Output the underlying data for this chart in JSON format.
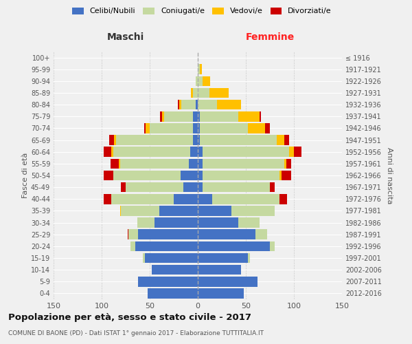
{
  "age_groups": [
    "0-4",
    "5-9",
    "10-14",
    "15-19",
    "20-24",
    "25-29",
    "30-34",
    "35-39",
    "40-44",
    "45-49",
    "50-54",
    "55-59",
    "60-64",
    "65-69",
    "70-74",
    "75-79",
    "80-84",
    "85-89",
    "90-94",
    "95-99",
    "100+"
  ],
  "birth_years": [
    "2012-2016",
    "2007-2011",
    "2002-2006",
    "1997-2001",
    "1992-1996",
    "1987-1991",
    "1982-1986",
    "1977-1981",
    "1972-1976",
    "1967-1971",
    "1962-1966",
    "1957-1961",
    "1952-1956",
    "1947-1951",
    "1942-1946",
    "1937-1941",
    "1932-1936",
    "1927-1931",
    "1922-1926",
    "1917-1921",
    "≤ 1916"
  ],
  "maschi": {
    "celibi": [
      52,
      62,
      48,
      55,
      65,
      62,
      45,
      40,
      25,
      15,
      18,
      9,
      8,
      5,
      5,
      5,
      2,
      0,
      0,
      0,
      0
    ],
    "coniugati": [
      0,
      0,
      0,
      2,
      5,
      10,
      18,
      40,
      65,
      60,
      70,
      72,
      80,
      80,
      45,
      30,
      15,
      5,
      2,
      0,
      0
    ],
    "vedovi": [
      0,
      0,
      0,
      0,
      0,
      0,
      0,
      1,
      0,
      0,
      0,
      1,
      2,
      2,
      4,
      2,
      2,
      2,
      0,
      0,
      0
    ],
    "divorziati": [
      0,
      0,
      0,
      0,
      0,
      1,
      0,
      0,
      8,
      5,
      10,
      9,
      8,
      5,
      2,
      2,
      2,
      0,
      0,
      0,
      0
    ]
  },
  "femmine": {
    "nubili": [
      48,
      62,
      45,
      52,
      75,
      60,
      42,
      35,
      15,
      5,
      5,
      5,
      5,
      2,
      2,
      2,
      0,
      0,
      0,
      0,
      0
    ],
    "coniugate": [
      0,
      0,
      0,
      2,
      5,
      12,
      22,
      45,
      70,
      70,
      80,
      85,
      90,
      80,
      50,
      40,
      20,
      12,
      5,
      2,
      0
    ],
    "vedove": [
      0,
      0,
      0,
      0,
      0,
      0,
      0,
      0,
      0,
      0,
      2,
      2,
      5,
      8,
      18,
      22,
      25,
      20,
      8,
      2,
      0
    ],
    "divorziate": [
      0,
      0,
      0,
      0,
      0,
      0,
      0,
      0,
      8,
      5,
      10,
      5,
      8,
      5,
      5,
      2,
      0,
      0,
      0,
      0,
      0
    ]
  },
  "colors": {
    "celibi": "#4472c4",
    "coniugati": "#c5d9a0",
    "vedovi": "#ffc000",
    "divorziati": "#cc0000"
  },
  "title": "Popolazione per età, sesso e stato civile - 2017",
  "subtitle": "COMUNE DI BAONE (PD) - Dati ISTAT 1° gennaio 2017 - Elaborazione TUTTITALIA.IT",
  "xlabel_left": "Maschi",
  "xlabel_right": "Femmine",
  "ylabel_left": "Fasce di età",
  "ylabel_right": "Anni di nascita",
  "xlim": 150,
  "legend_labels": [
    "Celibi/Nubili",
    "Coniugati/e",
    "Vedovi/e",
    "Divorziati/e"
  ],
  "background_color": "#f0f0f0"
}
